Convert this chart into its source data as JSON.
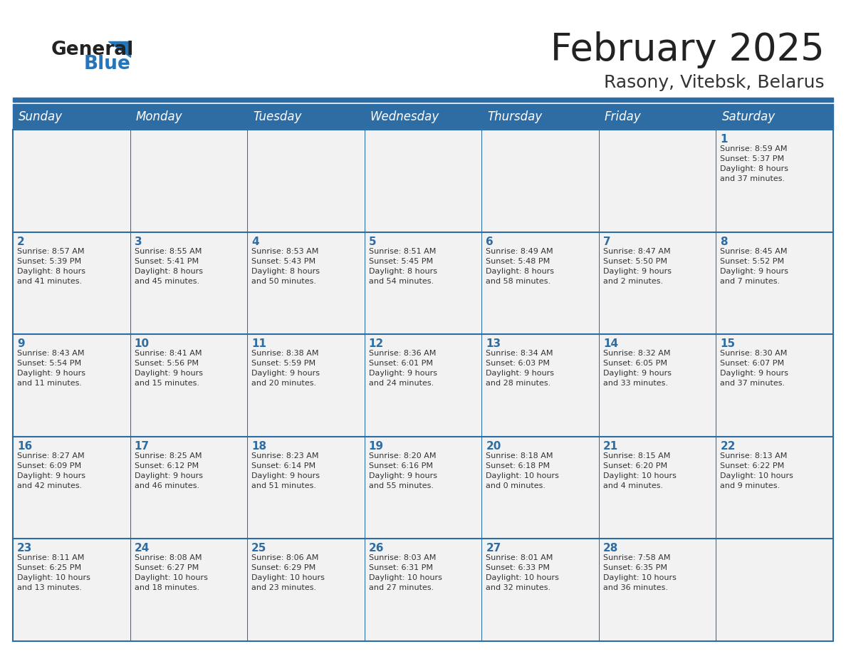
{
  "title": "February 2025",
  "subtitle": "Rasony, Vitebsk, Belarus",
  "days_of_week": [
    "Sunday",
    "Monday",
    "Tuesday",
    "Wednesday",
    "Thursday",
    "Friday",
    "Saturday"
  ],
  "header_bg": "#2E6DA4",
  "header_text": "#FFFFFF",
  "cell_bg": "#F2F2F2",
  "cell_border": "#2E6DA4",
  "day_num_color": "#2E6DA4",
  "info_color": "#333333",
  "title_color": "#222222",
  "subtitle_color": "#333333",
  "logo_general_color": "#222222",
  "logo_blue_color": "#2575BB",
  "weeks": [
    [
      {
        "day": null,
        "info": ""
      },
      {
        "day": null,
        "info": ""
      },
      {
        "day": null,
        "info": ""
      },
      {
        "day": null,
        "info": ""
      },
      {
        "day": null,
        "info": ""
      },
      {
        "day": null,
        "info": ""
      },
      {
        "day": 1,
        "info": "Sunrise: 8:59 AM\nSunset: 5:37 PM\nDaylight: 8 hours\nand 37 minutes."
      }
    ],
    [
      {
        "day": 2,
        "info": "Sunrise: 8:57 AM\nSunset: 5:39 PM\nDaylight: 8 hours\nand 41 minutes."
      },
      {
        "day": 3,
        "info": "Sunrise: 8:55 AM\nSunset: 5:41 PM\nDaylight: 8 hours\nand 45 minutes."
      },
      {
        "day": 4,
        "info": "Sunrise: 8:53 AM\nSunset: 5:43 PM\nDaylight: 8 hours\nand 50 minutes."
      },
      {
        "day": 5,
        "info": "Sunrise: 8:51 AM\nSunset: 5:45 PM\nDaylight: 8 hours\nand 54 minutes."
      },
      {
        "day": 6,
        "info": "Sunrise: 8:49 AM\nSunset: 5:48 PM\nDaylight: 8 hours\nand 58 minutes."
      },
      {
        "day": 7,
        "info": "Sunrise: 8:47 AM\nSunset: 5:50 PM\nDaylight: 9 hours\nand 2 minutes."
      },
      {
        "day": 8,
        "info": "Sunrise: 8:45 AM\nSunset: 5:52 PM\nDaylight: 9 hours\nand 7 minutes."
      }
    ],
    [
      {
        "day": 9,
        "info": "Sunrise: 8:43 AM\nSunset: 5:54 PM\nDaylight: 9 hours\nand 11 minutes."
      },
      {
        "day": 10,
        "info": "Sunrise: 8:41 AM\nSunset: 5:56 PM\nDaylight: 9 hours\nand 15 minutes."
      },
      {
        "day": 11,
        "info": "Sunrise: 8:38 AM\nSunset: 5:59 PM\nDaylight: 9 hours\nand 20 minutes."
      },
      {
        "day": 12,
        "info": "Sunrise: 8:36 AM\nSunset: 6:01 PM\nDaylight: 9 hours\nand 24 minutes."
      },
      {
        "day": 13,
        "info": "Sunrise: 8:34 AM\nSunset: 6:03 PM\nDaylight: 9 hours\nand 28 minutes."
      },
      {
        "day": 14,
        "info": "Sunrise: 8:32 AM\nSunset: 6:05 PM\nDaylight: 9 hours\nand 33 minutes."
      },
      {
        "day": 15,
        "info": "Sunrise: 8:30 AM\nSunset: 6:07 PM\nDaylight: 9 hours\nand 37 minutes."
      }
    ],
    [
      {
        "day": 16,
        "info": "Sunrise: 8:27 AM\nSunset: 6:09 PM\nDaylight: 9 hours\nand 42 minutes."
      },
      {
        "day": 17,
        "info": "Sunrise: 8:25 AM\nSunset: 6:12 PM\nDaylight: 9 hours\nand 46 minutes."
      },
      {
        "day": 18,
        "info": "Sunrise: 8:23 AM\nSunset: 6:14 PM\nDaylight: 9 hours\nand 51 minutes."
      },
      {
        "day": 19,
        "info": "Sunrise: 8:20 AM\nSunset: 6:16 PM\nDaylight: 9 hours\nand 55 minutes."
      },
      {
        "day": 20,
        "info": "Sunrise: 8:18 AM\nSunset: 6:18 PM\nDaylight: 10 hours\nand 0 minutes."
      },
      {
        "day": 21,
        "info": "Sunrise: 8:15 AM\nSunset: 6:20 PM\nDaylight: 10 hours\nand 4 minutes."
      },
      {
        "day": 22,
        "info": "Sunrise: 8:13 AM\nSunset: 6:22 PM\nDaylight: 10 hours\nand 9 minutes."
      }
    ],
    [
      {
        "day": 23,
        "info": "Sunrise: 8:11 AM\nSunset: 6:25 PM\nDaylight: 10 hours\nand 13 minutes."
      },
      {
        "day": 24,
        "info": "Sunrise: 8:08 AM\nSunset: 6:27 PM\nDaylight: 10 hours\nand 18 minutes."
      },
      {
        "day": 25,
        "info": "Sunrise: 8:06 AM\nSunset: 6:29 PM\nDaylight: 10 hours\nand 23 minutes."
      },
      {
        "day": 26,
        "info": "Sunrise: 8:03 AM\nSunset: 6:31 PM\nDaylight: 10 hours\nand 27 minutes."
      },
      {
        "day": 27,
        "info": "Sunrise: 8:01 AM\nSunset: 6:33 PM\nDaylight: 10 hours\nand 32 minutes."
      },
      {
        "day": 28,
        "info": "Sunrise: 7:58 AM\nSunset: 6:35 PM\nDaylight: 10 hours\nand 36 minutes."
      },
      {
        "day": null,
        "info": ""
      }
    ]
  ]
}
